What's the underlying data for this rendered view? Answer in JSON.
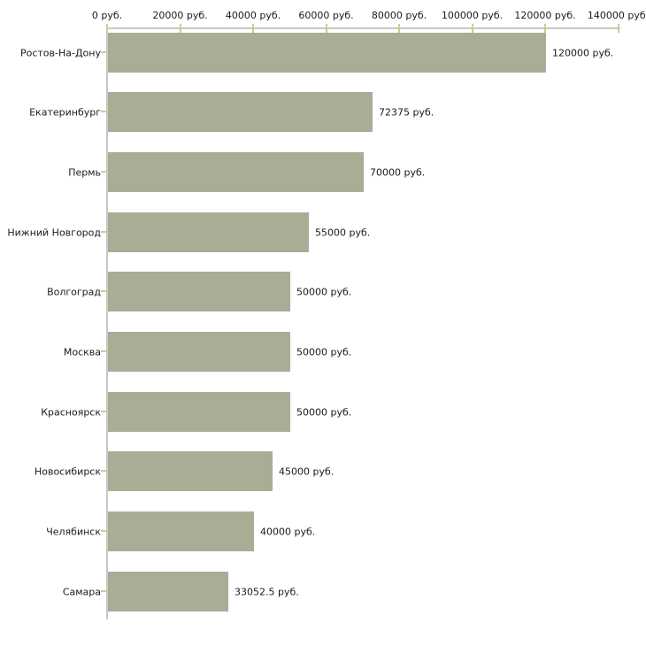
{
  "chart_data": {
    "type": "bar",
    "orientation": "horizontal",
    "title": "",
    "xlabel": "",
    "ylabel": "",
    "grid": false,
    "legend": false,
    "categories": [
      "Ростов-На-Дону",
      "Екатеринбург",
      "Пермь",
      "Нижний Новгород",
      "Волгоград",
      "Москва",
      "Красноярск",
      "Новосибирск",
      "Челябинск",
      "Самара"
    ],
    "values": [
      120000,
      72375,
      70000,
      55000,
      50000,
      50000,
      50000,
      45000,
      40000,
      33052.5
    ],
    "value_labels": [
      "120000 руб.",
      "72375 руб.",
      "70000 руб.",
      "55000 руб.",
      "50000 руб.",
      "50000 руб.",
      "50000 руб.",
      "45000 руб.",
      "40000 руб.",
      "33052.5 руб."
    ],
    "x_axis": {
      "position": "top",
      "range": [
        0,
        140000
      ],
      "ticks": [
        0,
        20000,
        40000,
        60000,
        80000,
        100000,
        120000,
        140000
      ],
      "tick_labels": [
        "0 руб.",
        "20000 руб.",
        "40000 руб.",
        "60000 руб.",
        "80000 руб.",
        "100000 руб.",
        "120000 руб.",
        "140000 руб."
      ]
    },
    "colors": {
      "bar": "#a8ad96",
      "axis_line": "#c8c8c8",
      "tick_mark": "#cbcb9b",
      "text": "#1a1a1a",
      "background": "#ffffff"
    }
  }
}
